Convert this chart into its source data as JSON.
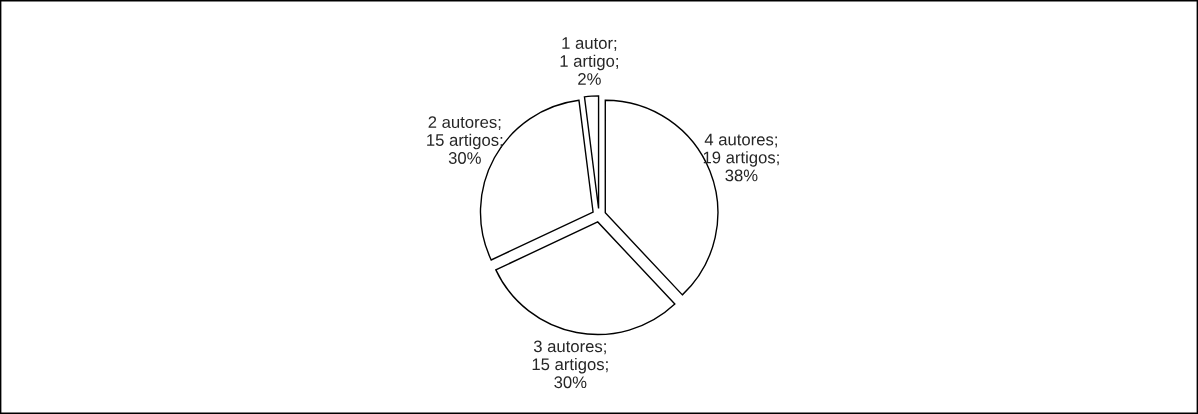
{
  "chart_data": {
    "type": "pie",
    "categories": [
      "4 autores; 19 artigos; 38%",
      "3 autores; 15 artigos; 30%",
      "2 autores; 15 artigos; 30%",
      "1 autor; 1 artigo; 2%"
    ],
    "values": [
      19,
      15,
      15,
      1
    ],
    "colors": [
      "#ffffff",
      "#ffffff",
      "#ffffff",
      "#ffffff"
    ]
  }
}
